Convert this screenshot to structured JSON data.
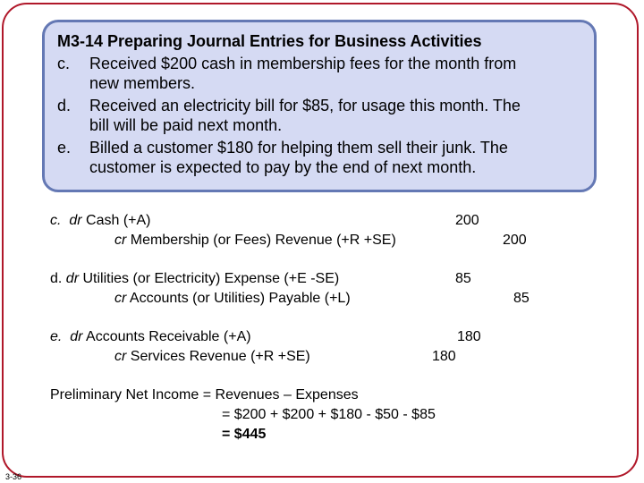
{
  "title": "M3-14 Preparing Journal Entries for Business Activities",
  "items": [
    {
      "letter": "c.",
      "lines": [
        "Received $200 cash in membership fees for the month from",
        "new members."
      ]
    },
    {
      "letter": "d.",
      "lines": [
        "Received an electricity bill for $85, for usage this month. The",
        "bill will be paid next month."
      ]
    },
    {
      "letter": "e.",
      "lines": [
        "Billed a customer $180 for helping them sell their junk. The",
        "customer is expected to pay by the end of next month."
      ]
    }
  ],
  "entries": [
    {
      "label": "c.",
      "dr_prefix": "dr",
      "dr_account": "Cash (+A)",
      "cr_prefix": "cr",
      "cr_account": "Membership (or Fees) Revenue (+R +SE)",
      "dr_amount": "200",
      "cr_amount": "200"
    },
    {
      "label": "d.",
      "dr_prefix": "dr",
      "dr_account": "Utilities (or Electricity) Expense (+E -SE)",
      "cr_prefix": "cr",
      "cr_account": "Accounts (or Utilities) Payable (+L)",
      "dr_amount": "85",
      "cr_amount": "85"
    },
    {
      "label": "e.",
      "dr_prefix": "dr",
      "dr_account": "Accounts Receivable (+A)",
      "cr_prefix": "cr",
      "cr_account": "Services Revenue (+R +SE)",
      "dr_amount": "180",
      "cr_amount": "180"
    }
  ],
  "net_income": {
    "line1": "Preliminary Net Income = Revenues – Expenses",
    "line2": "= $200 + $200 + $180  - $50 - $85",
    "line3": "= $445"
  },
  "slide_number": "3-36",
  "colors": {
    "frame": "#b0182a",
    "box_fill": "#d5daf3",
    "box_border": "#6478b4"
  }
}
